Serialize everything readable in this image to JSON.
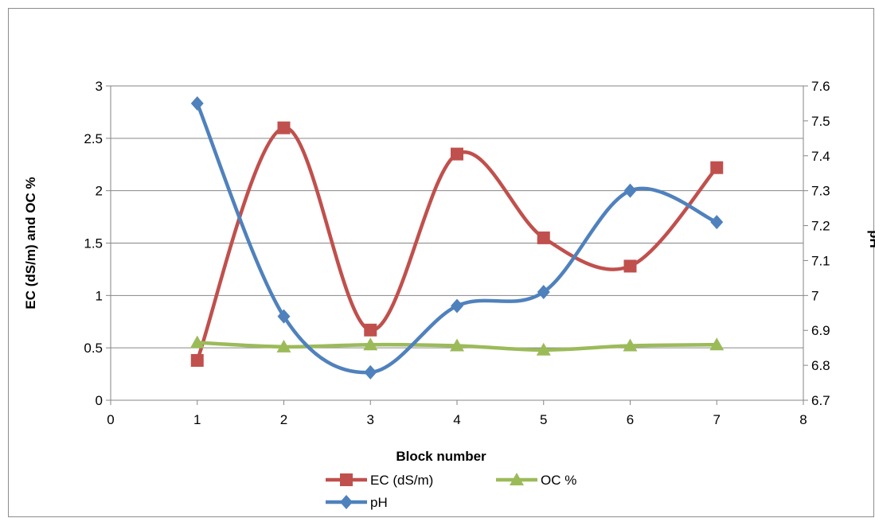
{
  "chart_data": {
    "type": "line",
    "title": "",
    "xlabel": "Block number",
    "ylabel_left": "EC (dS/m) and  OC %",
    "ylabel_right": "pH",
    "xlim": [
      0,
      8
    ],
    "ylim_left": [
      0,
      3
    ],
    "ylim_right": [
      6.7,
      7.6
    ],
    "x_ticks": [
      "0",
      "1",
      "2",
      "3",
      "4",
      "5",
      "6",
      "7",
      "8"
    ],
    "y_left_ticks": [
      "0",
      "0.5",
      "1",
      "1.5",
      "2",
      "2.5",
      "3"
    ],
    "y_right_ticks": [
      "6.7",
      "6.8",
      "6.9",
      "7",
      "7.1",
      "7.2",
      "7.3",
      "7.4",
      "7.5",
      "7.6"
    ],
    "grid": "horizontal",
    "legend_position": "bottom",
    "series": [
      {
        "name": "EC (dS/m)",
        "axis": "left",
        "color": "#c0504d",
        "marker": "square",
        "x": [
          1,
          2,
          3,
          4,
          5,
          6,
          7
        ],
        "values": [
          0.38,
          2.6,
          0.67,
          2.35,
          1.55,
          1.28,
          2.22
        ]
      },
      {
        "name": "OC %",
        "axis": "left",
        "color": "#9bbb59",
        "marker": "triangle",
        "x": [
          1,
          2,
          3,
          4,
          5,
          6,
          7
        ],
        "values": [
          0.55,
          0.51,
          0.53,
          0.52,
          0.48,
          0.52,
          0.53
        ]
      },
      {
        "name": "pH",
        "axis": "right",
        "color": "#4f81bd",
        "marker": "diamond",
        "x": [
          1,
          2,
          3,
          4,
          5,
          6,
          7
        ],
        "values": [
          7.55,
          6.94,
          6.78,
          6.97,
          7.01,
          7.3,
          7.21
        ]
      }
    ]
  }
}
